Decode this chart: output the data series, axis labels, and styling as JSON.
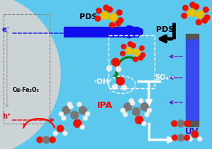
{
  "bg_color": "#5DC8ED",
  "circle_color": "#D8D8D8",
  "elements": {
    "e_label": "e⁻",
    "h_label": "h⁺",
    "pds_label_left": "PDS",
    "pds_label_right": "PDS",
    "oh_label": "·OH",
    "so4_label": "SO₄··",
    "ipa_label": "IPA",
    "uv_label": "UV",
    "catalyst_label": "Cu-Fe₂O₃"
  },
  "colors": {
    "blue_arrow": "#1010EE",
    "black_arrow": "#000000",
    "white_arrow": "#FFFFFF",
    "red_arrow": "#EE0000",
    "green_arrow": "#007700",
    "purple_arrow": "#7700BB",
    "e_color": "#1515EE",
    "h_color": "#EE0000",
    "ipa_color": "#EE0000",
    "uv_color": "#5500BB",
    "atom_S": "#E8C000",
    "atom_O": "#EE1100",
    "atom_C": "#777777",
    "atom_H": "#EEEEEE",
    "uv_tube_body": "#3344EE",
    "uv_tube_cap": "#555555"
  }
}
